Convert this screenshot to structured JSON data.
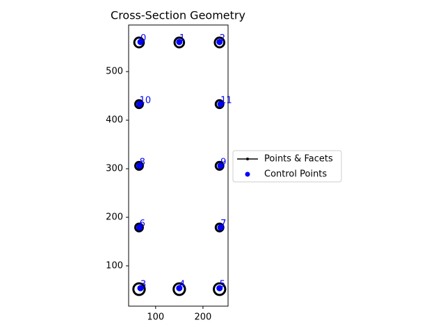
{
  "chart_data": {
    "type": "scatter",
    "title": "Cross-Section Geometry",
    "xlim": [
      43,
      253
    ],
    "ylim": [
      17,
      596
    ],
    "xticks": [
      100,
      200
    ],
    "yticks": [
      100,
      200,
      300,
      400,
      500
    ],
    "legend": "right",
    "series": [
      {
        "name": "Points & Facets",
        "color": "#000000",
        "x": [
          65,
          150,
          235,
          65,
          150,
          235,
          65,
          235,
          65,
          235,
          65,
          235
        ],
        "y": [
          560,
          560,
          560,
          52,
          52,
          52,
          179,
          179,
          306,
          306,
          433,
          433
        ],
        "radius": [
          10,
          10,
          10,
          12,
          12,
          12,
          8,
          8,
          8,
          8,
          8,
          8
        ]
      },
      {
        "name": "Control Points",
        "color": "#0000ff",
        "x": [
          68,
          150,
          235,
          68,
          150,
          235,
          66,
          237,
          66,
          237,
          66,
          237
        ],
        "y": [
          561,
          561,
          561,
          54,
          54,
          54,
          179,
          179,
          306,
          306,
          433,
          433
        ],
        "labels": [
          "0",
          "1",
          "2",
          "3",
          "4",
          "5",
          "6",
          "7",
          "8",
          "9",
          "10",
          "11"
        ]
      }
    ]
  }
}
